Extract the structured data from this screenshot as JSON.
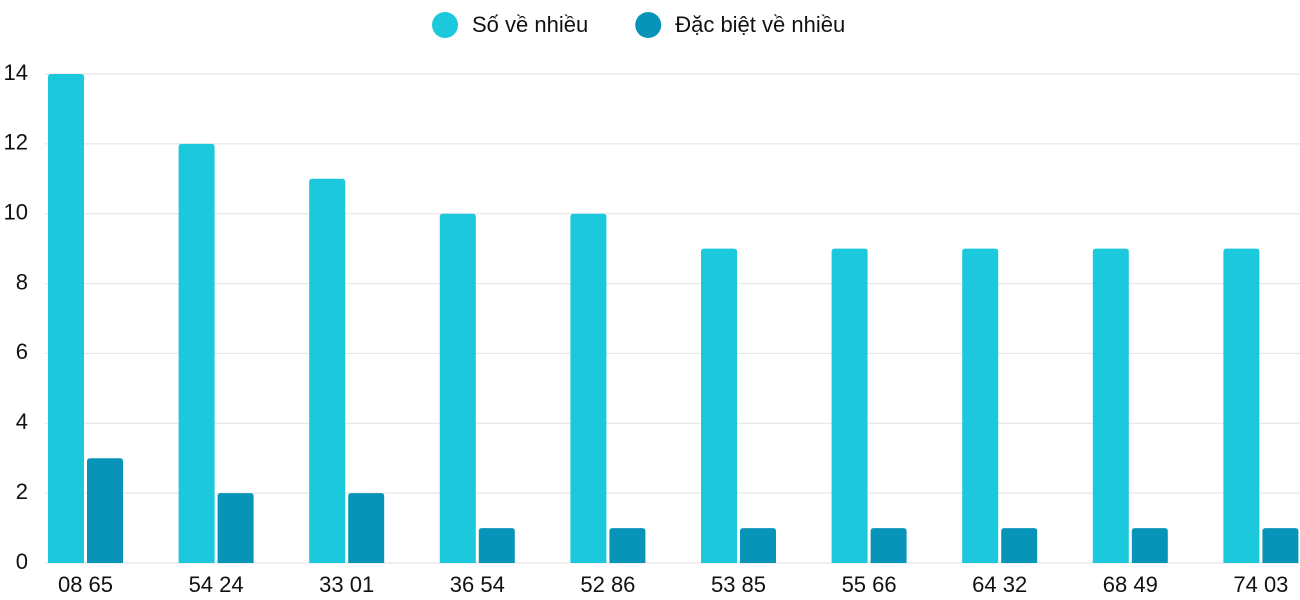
{
  "chart_data": {
    "type": "bar",
    "categories": [
      "08 65",
      "54 24",
      "33 01",
      "36 54",
      "52 86",
      "53 85",
      "55 66",
      "64 32",
      "68 49",
      "74 03"
    ],
    "series": [
      {
        "name": "Số về nhiều",
        "color": "#1bc8dc",
        "values": [
          14,
          12,
          11,
          10,
          10,
          9,
          9,
          9,
          9,
          9
        ]
      },
      {
        "name": "Đặc biệt về nhiều",
        "color": "#0894b8",
        "values": [
          3,
          2,
          2,
          1,
          1,
          1,
          1,
          1,
          1,
          1
        ]
      }
    ],
    "ylim": [
      0,
      14
    ],
    "yticks": [
      0,
      2,
      4,
      6,
      8,
      10,
      12,
      14
    ],
    "grid": true,
    "legend": "top"
  }
}
